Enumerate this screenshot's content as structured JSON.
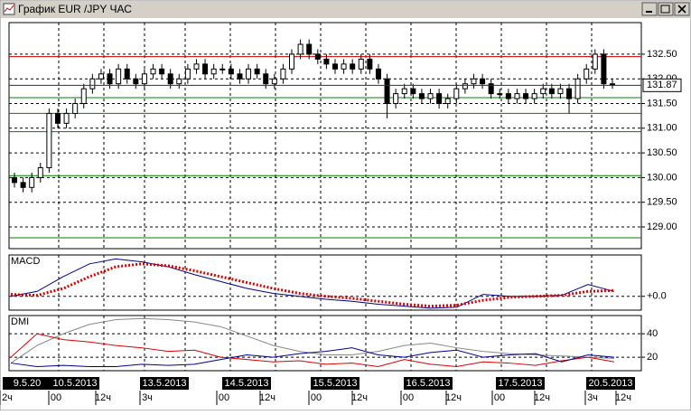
{
  "window": {
    "title": "График EUR /JPY ЧАС"
  },
  "chart_data": [
    {
      "type": "candlestick",
      "open": [
        130.0,
        129.9,
        129.8,
        130.0,
        130.2,
        131.3,
        131.1,
        131.3,
        131.5,
        131.8,
        132.0,
        132.1,
        131.9,
        132.2,
        132.0,
        131.9,
        132.1,
        132.2,
        132.1,
        131.9,
        132.0,
        132.2,
        132.3,
        132.1,
        132.2,
        132.2,
        132.1,
        132.0,
        132.2,
        132.1,
        131.9,
        132.0,
        132.2,
        132.5,
        132.7,
        132.5,
        132.4,
        132.3,
        132.2,
        132.3,
        132.2,
        132.4,
        132.2,
        132.0,
        131.5,
        131.7,
        131.8,
        131.7,
        131.6,
        131.7,
        131.5,
        131.6,
        131.8,
        131.9,
        132.0,
        131.9,
        131.7,
        131.7,
        131.6,
        131.7,
        131.6,
        131.7,
        131.8,
        131.7,
        131.8,
        131.6,
        132.0,
        132.2,
        132.5,
        131.9
      ],
      "high": [
        130.1,
        130.0,
        130.1,
        130.3,
        131.4,
        131.4,
        131.4,
        131.6,
        131.9,
        132.1,
        132.2,
        132.2,
        132.3,
        132.3,
        132.1,
        132.2,
        132.3,
        132.3,
        132.2,
        132.1,
        132.3,
        132.4,
        132.4,
        132.3,
        132.3,
        132.3,
        132.2,
        132.3,
        132.3,
        132.2,
        132.1,
        132.3,
        132.6,
        132.8,
        132.8,
        132.6,
        132.5,
        132.4,
        132.4,
        132.4,
        132.5,
        132.5,
        132.3,
        132.1,
        131.8,
        131.9,
        131.9,
        131.8,
        131.8,
        131.8,
        131.7,
        131.9,
        132.0,
        132.1,
        132.1,
        132.0,
        131.8,
        131.8,
        131.8,
        131.8,
        131.8,
        131.9,
        131.9,
        131.9,
        131.9,
        132.1,
        132.3,
        132.6,
        132.6,
        132.0
      ],
      "low": [
        129.8,
        129.7,
        129.7,
        129.9,
        130.1,
        131.0,
        131.0,
        131.2,
        131.4,
        131.7,
        131.9,
        131.8,
        131.8,
        131.9,
        131.8,
        131.8,
        132.0,
        132.0,
        131.8,
        131.8,
        131.9,
        132.1,
        132.0,
        132.0,
        132.1,
        132.0,
        131.9,
        131.9,
        132.0,
        131.8,
        131.8,
        131.9,
        132.1,
        132.4,
        132.4,
        132.3,
        132.2,
        132.1,
        132.1,
        132.1,
        132.1,
        132.1,
        131.9,
        131.2,
        131.4,
        131.6,
        131.6,
        131.5,
        131.5,
        131.4,
        131.4,
        131.5,
        131.7,
        131.8,
        131.8,
        131.6,
        131.6,
        131.5,
        131.5,
        131.5,
        131.5,
        131.6,
        131.6,
        131.6,
        131.3,
        131.5,
        131.9,
        132.1,
        131.8,
        131.8
      ],
      "close": [
        129.9,
        129.8,
        130.0,
        130.2,
        131.3,
        131.1,
        131.3,
        131.5,
        131.8,
        132.0,
        132.1,
        131.9,
        132.2,
        132.0,
        131.9,
        132.1,
        132.2,
        132.1,
        131.9,
        132.0,
        132.2,
        132.3,
        132.1,
        132.2,
        132.2,
        132.1,
        132.0,
        132.2,
        132.1,
        131.9,
        132.0,
        132.2,
        132.5,
        132.7,
        132.5,
        132.4,
        132.3,
        132.2,
        132.3,
        132.2,
        132.4,
        132.2,
        132.0,
        131.5,
        131.7,
        131.8,
        131.7,
        131.6,
        131.7,
        131.5,
        131.6,
        131.8,
        131.9,
        132.0,
        131.9,
        131.7,
        131.7,
        131.6,
        131.7,
        131.6,
        131.7,
        131.8,
        131.7,
        131.8,
        131.6,
        132.0,
        132.2,
        132.5,
        131.9,
        131.87
      ],
      "ylim": [
        128.56,
        133.14
      ],
      "yticks": [
        {
          "value": 132.5,
          "label": "132.50"
        },
        {
          "value": 132,
          "label": "132.00"
        },
        {
          "value": 131.5,
          "label": "131.50"
        },
        {
          "value": 131,
          "label": "131.00"
        },
        {
          "value": 130.5,
          "label": "130.50"
        },
        {
          "value": 130,
          "label": "130.00"
        },
        {
          "value": 129.5,
          "label": "129.50"
        },
        {
          "value": 129,
          "label": "129.00"
        }
      ],
      "levels": [
        {
          "value": 132.45,
          "color": "#cc0000"
        },
        {
          "value": 131.62,
          "color": "#008000"
        },
        {
          "value": 131.3,
          "color": "#008000"
        },
        {
          "value": 130.93,
          "color": "#008000"
        },
        {
          "value": 130.04,
          "color": "#008000"
        },
        {
          "value": 128.78,
          "color": "#008000"
        }
      ],
      "last_price": 131.87,
      "grid": true
    },
    {
      "type": "line",
      "title": "MACD",
      "series": [
        {
          "color": "#00008b",
          "values": [
            0.0,
            0.05,
            0.2,
            0.33,
            0.38,
            0.35,
            0.3,
            0.22,
            0.15,
            0.08,
            0.03,
            0.0,
            -0.03,
            -0.05,
            -0.08,
            -0.1,
            -0.12,
            -0.11,
            0.02,
            0.0,
            0.0,
            0.01,
            0.12,
            0.05
          ]
        },
        {
          "color": "#dd0000",
          "line_style": "dotted",
          "values": [
            0.02,
            0.01,
            0.08,
            0.2,
            0.3,
            0.33,
            0.31,
            0.26,
            0.2,
            0.14,
            0.08,
            0.03,
            0.0,
            -0.02,
            -0.05,
            -0.08,
            -0.1,
            -0.09,
            -0.04,
            -0.01,
            0.0,
            0.01,
            0.05,
            0.06
          ]
        }
      ],
      "ylim": [
        -0.14,
        0.42
      ],
      "yticks": [
        {
          "value": 0,
          "label": "+0.0"
        }
      ],
      "grid": true
    },
    {
      "type": "line",
      "title": "DMI",
      "series": [
        {
          "color": "#888888",
          "values": [
            15,
            30,
            40,
            48,
            52,
            53,
            52,
            50,
            46,
            38,
            30,
            25,
            22,
            22,
            25,
            30,
            32,
            28,
            25,
            23,
            22,
            21,
            20,
            19
          ]
        },
        {
          "color": "#dd0000",
          "values": [
            20,
            40,
            35,
            33,
            30,
            28,
            25,
            26,
            20,
            18,
            16,
            17,
            14,
            15,
            12,
            18,
            14,
            12,
            16,
            15,
            13,
            17,
            20,
            16
          ]
        },
        {
          "color": "#00008b",
          "values": [
            15,
            12,
            13,
            12,
            12,
            14,
            13,
            14,
            18,
            22,
            20,
            23,
            25,
            28,
            22,
            20,
            24,
            26,
            20,
            22,
            23,
            16,
            22,
            20
          ]
        }
      ],
      "ylim": [
        8.5,
        55.5
      ],
      "yticks": [
        40,
        20
      ],
      "grid": true
    }
  ],
  "time_axis": {
    "dates": [
      "9.5.20",
      "10.5.2013",
      "13.5.2013",
      "14.5.2013",
      "15.5.2013",
      "16.5.2013",
      "17.5.2013",
      "20.5.2013"
    ],
    "times": [
      "2ч",
      "00",
      "12ч",
      "3ч",
      "00",
      "12ч",
      "00",
      "12ч",
      "00",
      "12ч",
      "00",
      "12ч",
      "3ч",
      "12ч"
    ]
  }
}
